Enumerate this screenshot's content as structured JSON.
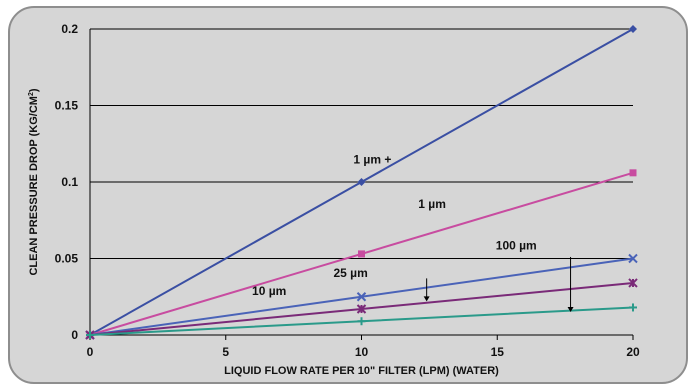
{
  "chart_data": {
    "type": "line",
    "title": "",
    "xlabel": "LIQUID FLOW RATE PER 10\" FILTER (LPM) (WATER)",
    "ylabel": "CLEAN PRESSURE DROP (KG/CM",
    "ylabel_sup": "2",
    "ylabel_close": ")",
    "xlim": [
      0,
      20
    ],
    "ylim": [
      0,
      0.2
    ],
    "xticks": [
      0,
      5,
      10,
      15,
      20
    ],
    "xtick_labels": [
      "0",
      "5",
      "10",
      "15",
      "20"
    ],
    "yticks": [
      0,
      0.05,
      0.1,
      0.15,
      0.2
    ],
    "ytick_labels": [
      "0",
      "0.05",
      "0.1",
      "0.15",
      "0.2"
    ],
    "grid": "horizontal",
    "x": [
      0,
      10,
      20
    ],
    "series": [
      {
        "values": [
          0,
          0.1,
          0.2
        ],
        "color": "#3a4fa3",
        "marker": "diamond"
      },
      {
        "values": [
          0,
          0.053,
          0.106
        ],
        "color": "#c84ca0",
        "marker": "square"
      },
      {
        "values": [
          0,
          0.025,
          0.05
        ],
        "color": "#4a63b8",
        "marker": "x"
      },
      {
        "values": [
          0,
          0.017,
          0.034
        ],
        "color": "#7a2a78",
        "marker": "star"
      },
      {
        "values": [
          0,
          0.009,
          0.018
        ],
        "color": "#2a9a8a",
        "marker": "plus"
      }
    ],
    "annotations": [
      {
        "text": "1 µm +",
        "x": 10.4,
        "y": 0.112
      },
      {
        "text": "1 µm",
        "x": 12.6,
        "y": 0.083
      },
      {
        "text": "100 µm",
        "x": 15.7,
        "y": 0.056
      },
      {
        "text": "25 µm",
        "x": 9.6,
        "y": 0.038
      },
      {
        "text": "10 µm",
        "x": 6.6,
        "y": 0.026
      }
    ],
    "arrows": [
      {
        "x": 12.4,
        "y_from": 0.037,
        "y_to": 0.022
      },
      {
        "x": 17.7,
        "y_from": 0.051,
        "y_to": 0.015
      }
    ]
  }
}
